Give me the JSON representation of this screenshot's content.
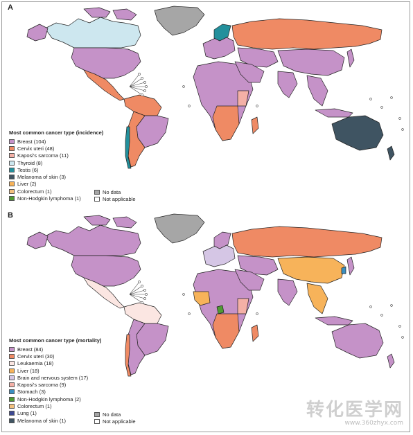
{
  "colors": {
    "breast": "#c592c8",
    "cervix": "#ef8a64",
    "kaposi": "#f4b0a6",
    "thyroid": "#cde7ef",
    "testis": "#23909c",
    "melanoma": "#3f5462",
    "liver": "#f7b35a",
    "colorectum": "#f2c07e",
    "nhl": "#4f9a34",
    "leukaemia": "#fbe6e2",
    "brain": "#d5c6e5",
    "stomach": "#3b8fc0",
    "lung": "#3d4891",
    "no_data": "#a6a6a6",
    "not_applicable": "#ffffff"
  },
  "panel_a": {
    "letter": "A",
    "legend_title": "Most common cancer type (incidence)",
    "legend": [
      {
        "label": "Breast (104)",
        "color_key": "breast"
      },
      {
        "label": "Cervix uteri (48)",
        "color_key": "cervix"
      },
      {
        "label": "Kaposi's sarcoma (11)",
        "color_key": "kaposi"
      },
      {
        "label": "Thyroid (8)",
        "color_key": "thyroid"
      },
      {
        "label": "Testis (6)",
        "color_key": "testis"
      },
      {
        "label": "Melanoma of skin (3)",
        "color_key": "melanoma"
      },
      {
        "label": "Liver (2)",
        "color_key": "liver"
      },
      {
        "label": "Colorectum (1)",
        "color_key": "colorectum"
      },
      {
        "label": "Non-Hodgkin lymphoma (1)",
        "color_key": "nhl"
      }
    ],
    "extra": [
      {
        "label": "No data",
        "color_key": "no_data"
      },
      {
        "label": "Not applicable",
        "color_key": "not_applicable"
      }
    ]
  },
  "panel_b": {
    "letter": "B",
    "legend_title": "Most common cancer type (mortality)",
    "legend": [
      {
        "label": "Breast (84)",
        "color_key": "breast"
      },
      {
        "label": "Cervix uteri (30)",
        "color_key": "cervix"
      },
      {
        "label": "Leukaemia (18)",
        "color_key": "leukaemia"
      },
      {
        "label": "Liver (18)",
        "color_key": "liver"
      },
      {
        "label": "Brain and nervous system (17)",
        "color_key": "brain"
      },
      {
        "label": "Kaposi's sarcoma (9)",
        "color_key": "kaposi"
      },
      {
        "label": "Stomach (3)",
        "color_key": "stomach"
      },
      {
        "label": "Non-Hodgkin lymphoma (2)",
        "color_key": "nhl"
      },
      {
        "label": "Colorectum (1)",
        "color_key": "colorectum"
      },
      {
        "label": "Lung (1)",
        "color_key": "lung"
      },
      {
        "label": "Melanoma of skin (1)",
        "color_key": "melanoma"
      }
    ],
    "extra": [
      {
        "label": "No data",
        "color_key": "no_data"
      },
      {
        "label": "Not applicable",
        "color_key": "not_applicable"
      }
    ]
  },
  "watermark": {
    "main": "转化医学网",
    "sub": "www.360zhyx.com"
  }
}
